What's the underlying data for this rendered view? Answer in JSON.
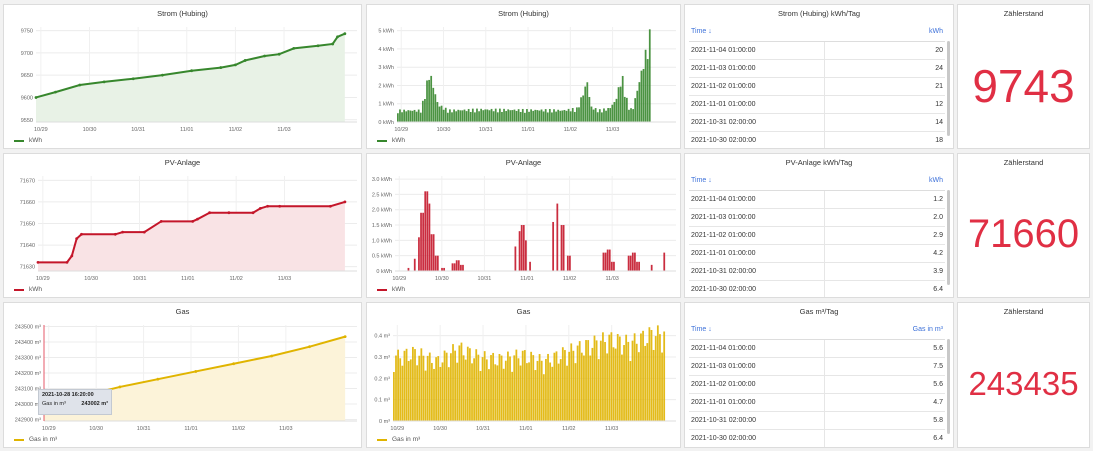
{
  "panels": {
    "strom_line": {
      "title": "Strom (Hubing)",
      "legend": "kWh"
    },
    "strom_bar": {
      "title": "Strom (Hubing)",
      "legend": "kWh"
    },
    "strom_table": {
      "title": "Strom (Hubing) kWh/Tag",
      "col_time": "Time ↓",
      "col_value": "kWh",
      "rows": [
        [
          "2021-11-04 01:00:00",
          "20"
        ],
        [
          "2021-11-03 01:00:00",
          "24"
        ],
        [
          "2021-11-02 01:00:00",
          "21"
        ],
        [
          "2021-11-01 01:00:00",
          "12"
        ],
        [
          "2021-10-31 02:00:00",
          "14"
        ],
        [
          "2021-10-30 02:00:00",
          "18"
        ]
      ]
    },
    "strom_stat": {
      "title": "Zählerstand",
      "value": "9743"
    },
    "pv_line": {
      "title": "PV-Anlage",
      "legend": "kWh"
    },
    "pv_bar": {
      "title": "PV-Anlage",
      "legend": "kWh"
    },
    "pv_table": {
      "title": "PV-Anlage kWh/Tag",
      "col_time": "Time ↓",
      "col_value": "kWh",
      "rows": [
        [
          "2021-11-04 01:00:00",
          "1.2"
        ],
        [
          "2021-11-03 01:00:00",
          "2.0"
        ],
        [
          "2021-11-02 01:00:00",
          "2.9"
        ],
        [
          "2021-11-01 01:00:00",
          "4.2"
        ],
        [
          "2021-10-31 02:00:00",
          "3.9"
        ],
        [
          "2021-10-30 02:00:00",
          "6.4"
        ]
      ]
    },
    "pv_stat": {
      "title": "Zählerstand",
      "value": "71660"
    },
    "gas_line": {
      "title": "Gas",
      "legend": "Gas in m³",
      "tooltip": {
        "time": "2021-10-28 16:20:00",
        "series": "Gas in m³",
        "value": "243002 m³"
      }
    },
    "gas_bar": {
      "title": "Gas",
      "legend": "Gas in m³"
    },
    "gas_table": {
      "title": "Gas m³/Tag",
      "col_time": "Time ↓",
      "col_value": "Gas in m³",
      "rows": [
        [
          "2021-11-04 01:00:00",
          "5.6"
        ],
        [
          "2021-11-03 01:00:00",
          "7.5"
        ],
        [
          "2021-11-02 01:00:00",
          "5.6"
        ],
        [
          "2021-11-01 01:00:00",
          "4.7"
        ],
        [
          "2021-10-31 02:00:00",
          "5.8"
        ],
        [
          "2021-10-30 02:00:00",
          "6.4"
        ]
      ]
    },
    "gas_stat": {
      "title": "Zählerstand",
      "value": "243435"
    }
  },
  "colors": {
    "strom": "#37872d",
    "pv": "#c4162a",
    "gas": "#e0b400",
    "stat": "#e02f44",
    "table_header": "#3d71d9"
  },
  "chart_data": [
    {
      "id": "strom_line",
      "type": "area",
      "title": "Strom (Hubing)",
      "series": [
        {
          "name": "kWh",
          "x": [
            0,
            0.4,
            0.9,
            1.4,
            2,
            2.6,
            3.2,
            3.8,
            4.1,
            4.3,
            4.7,
            5,
            5.3,
            5.8,
            6.1,
            6.2,
            6.35
          ],
          "values": [
            9600,
            9612,
            9628,
            9635,
            9642,
            9650,
            9660,
            9667,
            9673,
            9683,
            9693,
            9697,
            9710,
            9716,
            9720,
            9736,
            9743
          ]
        }
      ],
      "x_ticks": [
        "10/29",
        "10/30",
        "10/31",
        "11/01",
        "11/02",
        "11/03"
      ],
      "y_ticks": [
        9550,
        9600,
        9650,
        9700,
        9750
      ],
      "ylim": [
        9545,
        9758
      ]
    },
    {
      "id": "strom_bar",
      "type": "bar",
      "title": "Strom (Hubing)",
      "series": [
        {
          "name": "kWh",
          "x": [
            0,
            0.55,
            0.75,
            0.95,
            1.2,
            2,
            3,
            3.5,
            3.6,
            3.9,
            4.25,
            4.5,
            4.55,
            4.75,
            5,
            5.15,
            5.3,
            5.45,
            5.55,
            6
          ],
          "values": [
            0.6,
            0.6,
            2.6,
            0.9,
            0.6,
            0.65,
            0.62,
            0.62,
            0.62,
            0.6,
            0.7,
            2.2,
            0.8,
            0.6,
            0.7,
            1.1,
            2.4,
            0.8,
            0.6,
            4.8
          ]
        }
      ],
      "x_ticks": [
        "10/29",
        "10/30",
        "10/31",
        "11/01",
        "11/02",
        "11/03"
      ],
      "y_ticks": [
        "0 kWh",
        "1 kWh",
        "2 kWh",
        "3 kWh",
        "4 kWh",
        "5 kWh"
      ],
      "ylim": [
        0,
        5.2
      ]
    },
    {
      "id": "pv_line",
      "type": "area",
      "title": "PV-Anlage",
      "series": [
        {
          "name": "kWh",
          "x": [
            0,
            0.6,
            0.7,
            0.8,
            0.9,
            1.6,
            1.75,
            2.2,
            2.55,
            3.2,
            3.3,
            3.55,
            3.95,
            4.45,
            4.6,
            4.75,
            5,
            6.05,
            6.35
          ],
          "values": [
            71632,
            71632,
            71635,
            71643,
            71645,
            71645,
            71646,
            71646,
            71651,
            71651,
            71652,
            71655,
            71655,
            71655,
            71657,
            71658,
            71658,
            71658,
            71660
          ]
        }
      ],
      "x_ticks": [
        "10/29",
        "10/30",
        "10/31",
        "11/01",
        "11/02",
        "11/03"
      ],
      "y_ticks": [
        71630,
        71640,
        71650,
        71660,
        71670
      ],
      "ylim": [
        71628,
        71672
      ]
    },
    {
      "id": "pv_bar",
      "type": "bar",
      "title": "PV-Anlage",
      "series": [
        {
          "name": "kWh",
          "x": [
            0.3,
            0.45,
            0.55,
            0.62,
            0.7,
            0.78,
            0.85,
            0.95,
            1.1,
            1.35,
            1.45,
            1.55,
            2.8,
            2.9,
            2.98,
            3.05,
            3.15,
            3.7,
            3.8,
            3.9,
            4.05,
            4.9,
            5,
            5.1,
            5.5,
            5.6,
            5.7,
            6.0,
            6.3,
            6.4
          ],
          "values": [
            0.1,
            0.4,
            1.1,
            1.9,
            2.6,
            2.2,
            1.2,
            0.5,
            0.1,
            0.25,
            0.35,
            0.2,
            0.8,
            1.3,
            1.5,
            1.0,
            0.3,
            1.6,
            2.2,
            1.5,
            0.5,
            0.6,
            0.7,
            0.3,
            0.5,
            0.6,
            0.3,
            0.2,
            0.6,
            0.8
          ]
        }
      ],
      "x_ticks": [
        "10/29",
        "10/30",
        "10/31",
        "11/01",
        "11/02",
        "11/03"
      ],
      "y_ticks": [
        "0 kWh",
        "0.5 kWh",
        "1.0 kWh",
        "1.5 kWh",
        "2.0 kWh",
        "2.5 kWh",
        "3.0 kWh"
      ],
      "ylim": [
        0,
        3.1
      ]
    },
    {
      "id": "gas_line",
      "type": "area",
      "title": "Gas",
      "series": [
        {
          "name": "Gas in m³",
          "x": [
            0,
            0.8,
            1.6,
            2.4,
            3.2,
            4,
            4.8,
            5.6,
            6.35
          ],
          "values": [
            243000,
            243050,
            243110,
            243160,
            243210,
            243260,
            243310,
            243370,
            243435
          ]
        }
      ],
      "x_ticks": [
        "10/29",
        "10/30",
        "10/31",
        "11/01",
        "11/02",
        "11/03"
      ],
      "y_ticks": [
        "242900 m³",
        "243000 m³",
        "243100 m³",
        "243200 m³",
        "243300 m³",
        "243400 m³",
        "243500 m³"
      ],
      "ylim": [
        242890,
        243510
      ]
    },
    {
      "id": "gas_bar",
      "type": "bar",
      "title": "Gas",
      "series": [
        {
          "name": "Gas in m³",
          "x": [
            0,
            0.5,
            1,
            1.5,
            2,
            2.5,
            3,
            3.5,
            4,
            4.5,
            5,
            5.5,
            6,
            6.35
          ],
          "values": [
            0.28,
            0.3,
            0.26,
            0.32,
            0.28,
            0.27,
            0.29,
            0.26,
            0.3,
            0.33,
            0.36,
            0.34,
            0.38,
            0.38
          ]
        }
      ],
      "x_ticks": [
        "10/29",
        "10/30",
        "10/31",
        "11/01",
        "11/02",
        "11/03"
      ],
      "y_ticks": [
        "0 m³",
        "0.1 m³",
        "0.2 m³",
        "0.3 m³",
        "0.4 m³"
      ],
      "ylim": [
        0,
        0.45
      ]
    }
  ]
}
